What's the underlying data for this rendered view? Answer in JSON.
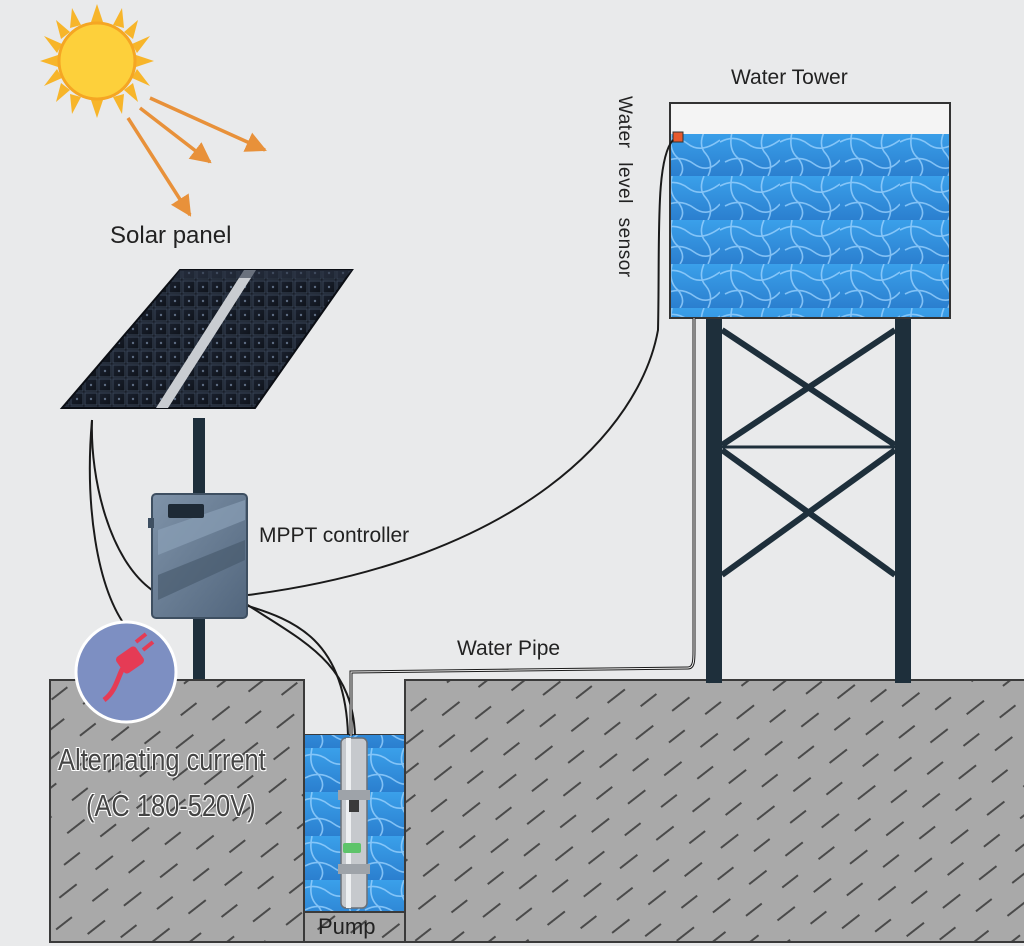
{
  "labels": {
    "solar_panel": "Solar panel",
    "water_tower": "Water Tower",
    "water_level_sensor": "Water  level sensor",
    "mppt_controller": "MPPT controller",
    "water_pipe": "Water Pipe",
    "ac_line1": "Alternating current",
    "ac_line2": "(AC 180-520V)",
    "pump": "Pump"
  },
  "colors": {
    "background": "#e9eaeb",
    "ground": "#a9a9a9",
    "water": "#3d9be0",
    "sun": "#fbb726",
    "arrow": "#e8913a",
    "tower_frame": "#1e2f3b",
    "controller": "#6b7f95",
    "plug_circle": "#7d8fc2",
    "plug": "#e53b55"
  }
}
